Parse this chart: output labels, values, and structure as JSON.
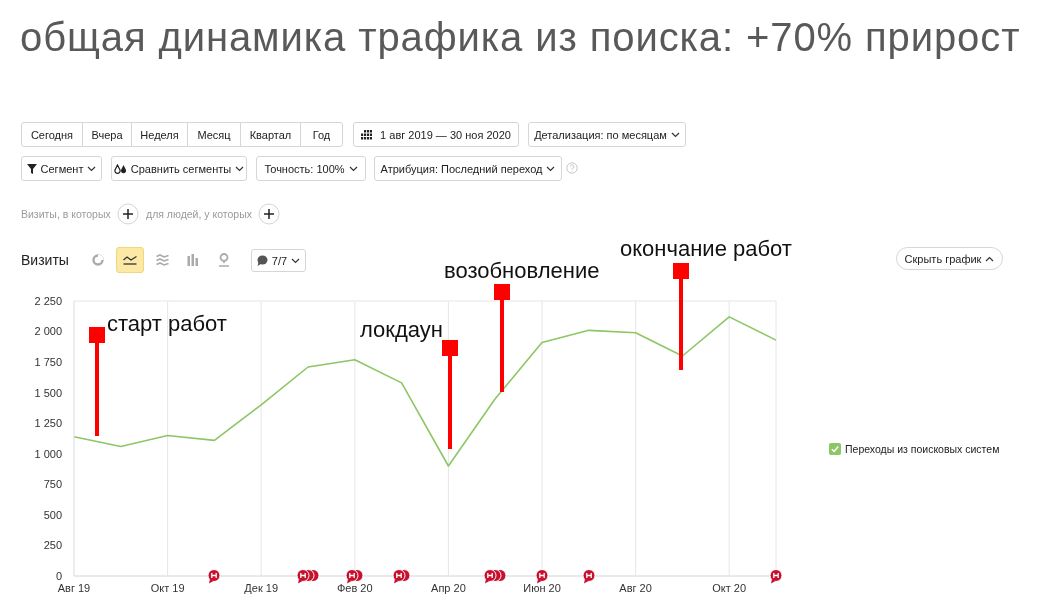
{
  "chart_data": {
    "type": "line",
    "title": "общая динамика трафика из поиска: +70% прирост",
    "ylabel": "Визиты",
    "categories": [
      "Авг 19",
      null,
      "Окт 19",
      null,
      "Дек 19",
      null,
      "Фев 20",
      null,
      "Апр 20",
      null,
      "Июн 20",
      null,
      "Авг 20",
      null,
      "Окт 20",
      null
    ],
    "series": [
      {
        "name": "Переходы из поисковых систем",
        "color": "#8cc665",
        "values": [
          1140,
          1060,
          1150,
          1110,
          1400,
          1710,
          1770,
          1580,
          900,
          1450,
          1910,
          2010,
          1990,
          1800,
          2120,
          1930
        ]
      }
    ],
    "ylim": [
      0,
      2250
    ],
    "yticks": [
      0,
      250,
      500,
      750,
      {
        "value": 1000,
        "label": "1 000"
      },
      {
        "value": 1250,
        "label": "1 250"
      },
      {
        "value": 1500,
        "label": "1 500"
      },
      {
        "value": 1750,
        "label": "1 750"
      },
      {
        "value": 2000,
        "label": "2 000"
      },
      {
        "value": 2250,
        "label": "2 250"
      }
    ],
    "grid": true,
    "legend": "right",
    "marker": "none",
    "annotations": [
      "старт работ",
      "локдаун",
      "возобновление",
      "окончание работ",
      "Сегодня",
      "Вчера",
      "Неделя",
      "Месяц",
      "Квартал",
      "Год",
      "1 авг 2019 — 30 ноя 2020",
      "Детализация: по месяцам",
      "Сегмент",
      "Сравнить сегменты",
      "Точность: 100%",
      "Атрибуция: Последний переход",
      "Визиты, в которых",
      "для людей, у которых",
      "7/7",
      "Скрыть график"
    ]
  }
}
